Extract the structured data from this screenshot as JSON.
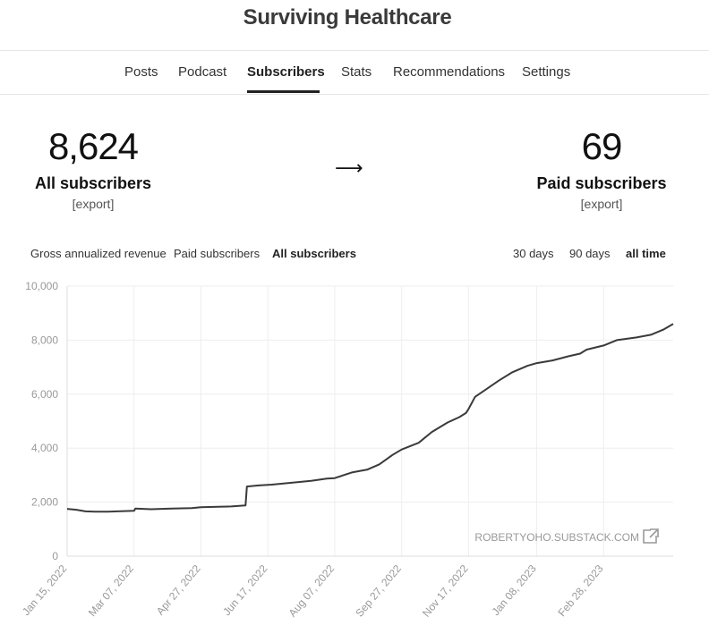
{
  "site": {
    "title": "Surviving Healthcare"
  },
  "nav": {
    "tabs": [
      {
        "label": "Posts",
        "active": false
      },
      {
        "label": "Podcast",
        "active": false
      },
      {
        "label": "Subscribers",
        "active": true
      },
      {
        "label": "Stats",
        "active": false
      },
      {
        "label": "Recommendations",
        "active": false
      },
      {
        "label": "Settings",
        "active": false
      }
    ]
  },
  "summary": {
    "all": {
      "count": "8,624",
      "label": "All subscribers",
      "export": "[export]"
    },
    "arrow": "⟶",
    "paid": {
      "count": "69",
      "label": "Paid subscribers",
      "export": "[export]"
    }
  },
  "chart_filters": {
    "metrics": [
      {
        "label": "Gross annualized revenue",
        "active": false
      },
      {
        "label": "Paid subscribers",
        "active": false
      },
      {
        "label": "All subscribers",
        "active": true
      }
    ],
    "ranges": [
      {
        "label": "30 days",
        "active": false
      },
      {
        "label": "90 days",
        "active": false
      },
      {
        "label": "all time",
        "active": true
      }
    ]
  },
  "watermark": "ROBERTYOHO.SUBSTACK.COM",
  "colors": {
    "line": "#3a3a3a",
    "grid": "#eeeeee",
    "axis_text": "#999999",
    "accent": "#222222"
  },
  "chart_data": {
    "type": "line",
    "title": "",
    "xlabel": "",
    "ylabel": "",
    "ylim": [
      0,
      10000
    ],
    "xlim": [
      "2022-01-15",
      "2023-04-22"
    ],
    "y_ticks": [
      "0",
      "2,000",
      "4,000",
      "6,000",
      "8,000",
      "10,000"
    ],
    "y_tick_values": [
      0,
      2000,
      4000,
      6000,
      8000,
      10000
    ],
    "x_ticks": [
      "Jan 15, 2022",
      "Mar 07, 2022",
      "Apr 27, 2022",
      "Jun 17, 2022",
      "Aug 07, 2022",
      "Sep 27, 2022",
      "Nov 17, 2022",
      "Jan 08, 2023",
      "Feb 28, 2023"
    ],
    "x_tick_values": [
      "2022-01-15",
      "2022-03-07",
      "2022-04-27",
      "2022-06-17",
      "2022-08-07",
      "2022-09-27",
      "2022-11-17",
      "2023-01-08",
      "2023-02-28"
    ],
    "grid": true,
    "series": [
      {
        "x": [
          "2022-01-15",
          "2022-01-22",
          "2022-01-29",
          "2022-02-05",
          "2022-02-15",
          "2022-03-07",
          "2022-03-08",
          "2022-03-20",
          "2022-04-05",
          "2022-04-20",
          "2022-04-27",
          "2022-05-10",
          "2022-05-20",
          "2022-05-31",
          "2022-06-01",
          "2022-06-10",
          "2022-06-20",
          "2022-07-05",
          "2022-07-20",
          "2022-08-01",
          "2022-08-07",
          "2022-08-20",
          "2022-09-01",
          "2022-09-10",
          "2022-09-20",
          "2022-09-27",
          "2022-10-10",
          "2022-10-20",
          "2022-11-01",
          "2022-11-10",
          "2022-11-15",
          "2022-11-17",
          "2022-11-22",
          "2022-12-01",
          "2022-12-10",
          "2022-12-20",
          "2023-01-01",
          "2023-01-08",
          "2023-01-20",
          "2023-02-01",
          "2023-02-10",
          "2023-02-15",
          "2023-02-28",
          "2023-03-10",
          "2023-03-25",
          "2023-04-05",
          "2023-04-15",
          "2023-04-22"
        ],
        "y": [
          1750,
          1720,
          1660,
          1650,
          1650,
          1680,
          1760,
          1740,
          1760,
          1780,
          1810,
          1830,
          1840,
          1880,
          2580,
          2620,
          2650,
          2720,
          2790,
          2870,
          2890,
          3100,
          3210,
          3400,
          3750,
          3950,
          4200,
          4600,
          4950,
          5150,
          5300,
          5450,
          5900,
          6200,
          6500,
          6800,
          7050,
          7150,
          7250,
          7400,
          7500,
          7650,
          7800,
          8000,
          8100,
          8200,
          8400,
          8600
        ]
      }
    ]
  }
}
